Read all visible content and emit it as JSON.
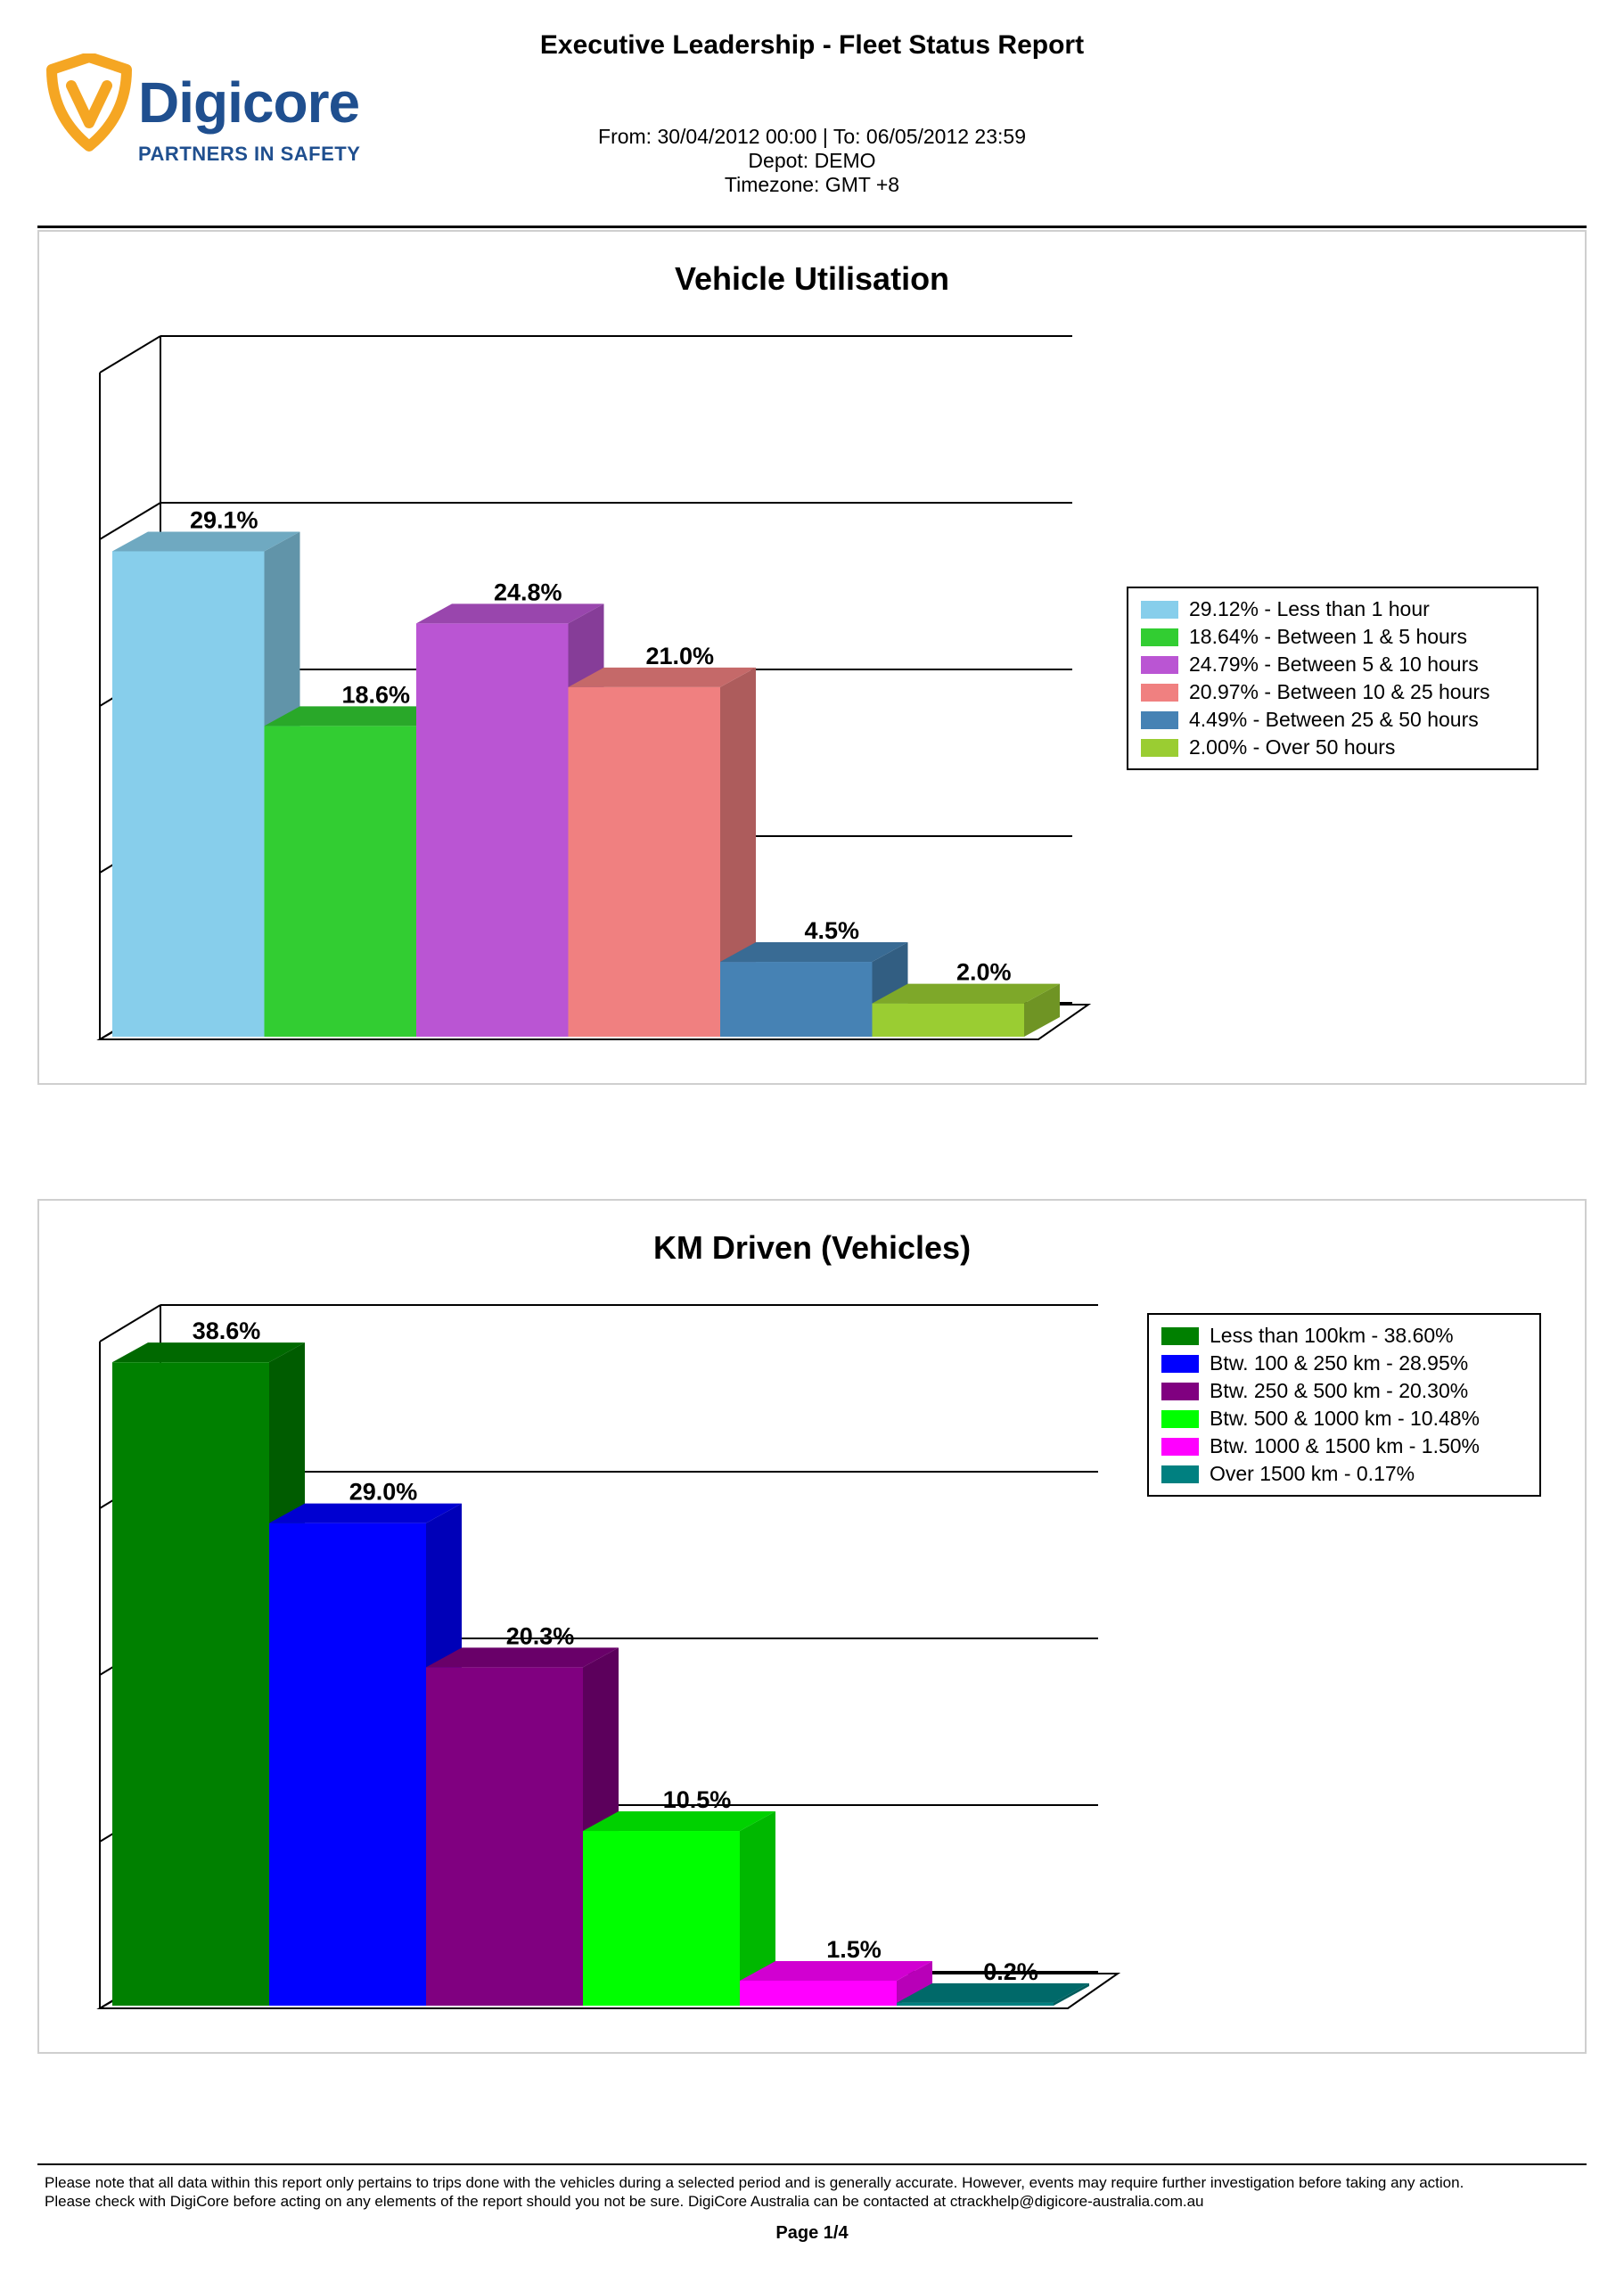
{
  "header": {
    "report_title": "Executive Leadership - Fleet Status Report",
    "period": "From: 30/04/2012 00:00 | To: 06/05/2012 23:59",
    "depot": "Depot: DEMO",
    "timezone": "Timezone: GMT +8"
  },
  "logo": {
    "brand": "Digicore",
    "tagline": "PARTNERS IN SAFETY",
    "colors": {
      "primary": "#1f4f8f",
      "accent": "#f5a623"
    }
  },
  "chart_data": [
    {
      "type": "bar",
      "title": "Vehicle Utilisation",
      "xlabel": "",
      "ylabel": "",
      "ylim": [
        0,
        40
      ],
      "grid": true,
      "three_d": true,
      "legend_position": "right",
      "categories": [
        "29.12% - Less than 1 hour",
        "18.64% - Between 1 & 5 hours",
        "24.79% - Between 5 & 10 hours",
        "20.97% - Between 10 & 25 hours",
        "4.49% - Between 25 & 50 hours",
        "2.00% - Over 50 hours"
      ],
      "values": [
        29.12,
        18.64,
        24.79,
        20.97,
        4.49,
        2.0
      ],
      "labels": [
        "29.1%",
        "18.6%",
        "24.8%",
        "21.0%",
        "4.5%",
        "2.0%"
      ],
      "colors": [
        "#87ceeb",
        "#32cd32",
        "#ba55d3",
        "#f08080",
        "#4682b4",
        "#9acd32"
      ]
    },
    {
      "type": "bar",
      "title": "KM Driven (Vehicles)",
      "xlabel": "",
      "ylabel": "",
      "ylim": [
        0,
        40
      ],
      "grid": true,
      "three_d": true,
      "legend_position": "right",
      "categories": [
        "Less than 100km - 38.60%",
        "Btw. 100 & 250 km - 28.95%",
        "Btw. 250 & 500 km - 20.30%",
        "Btw. 500 & 1000 km - 10.48%",
        "Btw. 1000 & 1500 km - 1.50%",
        "Over 1500 km - 0.17%"
      ],
      "values": [
        38.6,
        28.95,
        20.3,
        10.48,
        1.5,
        0.17
      ],
      "labels": [
        "38.6%",
        "29.0%",
        "20.3%",
        "10.5%",
        "1.5%",
        "0.2%"
      ],
      "colors": [
        "#008000",
        "#0000ff",
        "#800080",
        "#00ff00",
        "#ff00ff",
        "#008080"
      ]
    }
  ],
  "footer": {
    "note_line1": "Please note that all data within this report only pertains to trips done with the vehicles during a selected period and is generally accurate. However, events may require further investigation before taking any action.",
    "note_line2": "Please check with DigiCore before acting on any elements of the report should you not be sure. DigiCore Australia can be contacted at ctrackhelp@digicore-australia.com.au",
    "page": "Page 1/4"
  }
}
